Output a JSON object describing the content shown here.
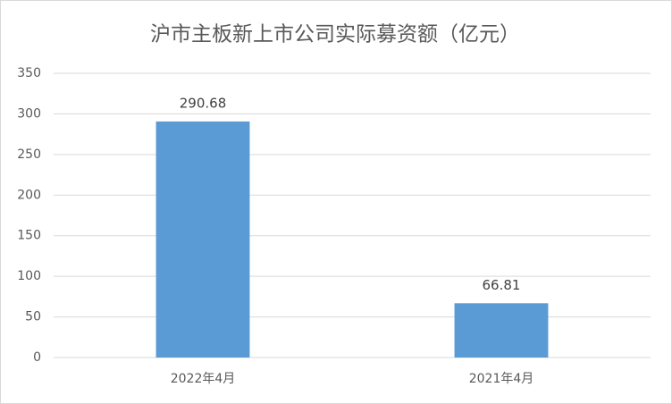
{
  "chart_data": {
    "type": "bar",
    "title": "沪市主板新上市公司实际募资额（亿元）",
    "categories": [
      "2022年4月",
      "2021年4月"
    ],
    "values": [
      290.68,
      66.81
    ],
    "color": "#5b9bd5",
    "ylim": [
      0,
      350
    ],
    "yticks": [
      0,
      50,
      100,
      150,
      200,
      250,
      300,
      350
    ],
    "grid": true
  }
}
